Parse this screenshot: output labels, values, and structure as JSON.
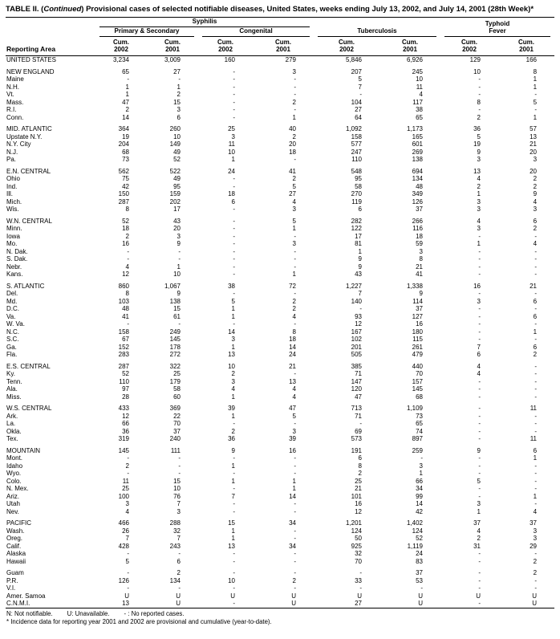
{
  "title": {
    "prefix": "TABLE II. (",
    "continued": "Continued",
    "suffix": ") Provisional cases of selected notifiable diseases, United States, weeks ending July 13, 2002, and July 14, 2001 (28th Week)*"
  },
  "table": {
    "reporting_area_label": "Reporting Area",
    "groups": {
      "syphilis": "Syphilis",
      "primary_secondary": "Primary & Secondary",
      "congenital": "Congenital",
      "tuberculosis": "Tuberculosis",
      "typhoid_line1": "Typhoid",
      "typhoid_line2": "Fever"
    },
    "columns": [
      {
        "cum": "Cum.",
        "year": "2002"
      },
      {
        "cum": "Cum.",
        "year": "2001"
      },
      {
        "cum": "Cum.",
        "year": "2002"
      },
      {
        "cum": "Cum.",
        "year": "2001"
      },
      {
        "cum": "Cum.",
        "year": "2002"
      },
      {
        "cum": "Cum.",
        "year": "2001"
      },
      {
        "cum": "Cum.",
        "year": "2002"
      },
      {
        "cum": "Cum.",
        "year": "2001"
      }
    ],
    "sections": [
      [
        {
          "a": "UNITED STATES",
          "v": [
            "3,234",
            "3,009",
            "160",
            "279",
            "5,846",
            "6,926",
            "129",
            "166"
          ]
        }
      ],
      [
        {
          "a": "NEW ENGLAND",
          "v": [
            "65",
            "27",
            "-",
            "3",
            "207",
            "245",
            "10",
            "8"
          ]
        },
        {
          "a": "Maine",
          "v": [
            "-",
            "-",
            "-",
            "-",
            "5",
            "10",
            "-",
            "1"
          ]
        },
        {
          "a": "N.H.",
          "v": [
            "1",
            "1",
            "-",
            "-",
            "7",
            "11",
            "-",
            "1"
          ]
        },
        {
          "a": "Vt.",
          "v": [
            "1",
            "2",
            "-",
            "-",
            "-",
            "4",
            "-",
            "-"
          ]
        },
        {
          "a": "Mass.",
          "v": [
            "47",
            "15",
            "-",
            "2",
            "104",
            "117",
            "8",
            "5"
          ]
        },
        {
          "a": "R.I.",
          "v": [
            "2",
            "3",
            "-",
            "-",
            "27",
            "38",
            "-",
            "-"
          ]
        },
        {
          "a": "Conn.",
          "v": [
            "14",
            "6",
            "-",
            "1",
            "64",
            "65",
            "2",
            "1"
          ]
        }
      ],
      [
        {
          "a": "MID. ATLANTIC",
          "v": [
            "364",
            "260",
            "25",
            "40",
            "1,092",
            "1,173",
            "36",
            "57"
          ]
        },
        {
          "a": "Upstate N.Y.",
          "v": [
            "19",
            "10",
            "3",
            "2",
            "158",
            "165",
            "5",
            "13"
          ]
        },
        {
          "a": "N.Y. City",
          "v": [
            "204",
            "149",
            "11",
            "20",
            "577",
            "601",
            "19",
            "21"
          ]
        },
        {
          "a": "N.J.",
          "v": [
            "68",
            "49",
            "10",
            "18",
            "247",
            "269",
            "9",
            "20"
          ]
        },
        {
          "a": "Pa.",
          "v": [
            "73",
            "52",
            "1",
            "-",
            "110",
            "138",
            "3",
            "3"
          ]
        }
      ],
      [
        {
          "a": "E.N. CENTRAL",
          "v": [
            "562",
            "522",
            "24",
            "41",
            "548",
            "694",
            "13",
            "20"
          ]
        },
        {
          "a": "Ohio",
          "v": [
            "75",
            "49",
            "-",
            "2",
            "95",
            "134",
            "4",
            "2"
          ]
        },
        {
          "a": "Ind.",
          "v": [
            "42",
            "95",
            "-",
            "5",
            "58",
            "48",
            "2",
            "2"
          ]
        },
        {
          "a": "Ill.",
          "v": [
            "150",
            "159",
            "18",
            "27",
            "270",
            "349",
            "1",
            "9"
          ]
        },
        {
          "a": "Mich.",
          "v": [
            "287",
            "202",
            "6",
            "4",
            "119",
            "126",
            "3",
            "4"
          ]
        },
        {
          "a": "Wis.",
          "v": [
            "8",
            "17",
            "-",
            "3",
            "6",
            "37",
            "3",
            "3"
          ]
        }
      ],
      [
        {
          "a": "W.N. CENTRAL",
          "v": [
            "52",
            "43",
            "-",
            "5",
            "282",
            "266",
            "4",
            "6"
          ]
        },
        {
          "a": "Minn.",
          "v": [
            "18",
            "20",
            "-",
            "1",
            "122",
            "116",
            "3",
            "2"
          ]
        },
        {
          "a": "Iowa",
          "v": [
            "2",
            "3",
            "-",
            "-",
            "17",
            "18",
            "-",
            "-"
          ]
        },
        {
          "a": "Mo.",
          "v": [
            "16",
            "9",
            "-",
            "3",
            "81",
            "59",
            "1",
            "4"
          ]
        },
        {
          "a": "N. Dak.",
          "v": [
            "-",
            "-",
            "-",
            "-",
            "1",
            "3",
            "-",
            "-"
          ]
        },
        {
          "a": "S. Dak.",
          "v": [
            "-",
            "-",
            "-",
            "-",
            "9",
            "8",
            "-",
            "-"
          ]
        },
        {
          "a": "Nebr.",
          "v": [
            "4",
            "1",
            "-",
            "-",
            "9",
            "21",
            "-",
            "-"
          ]
        },
        {
          "a": "Kans.",
          "v": [
            "12",
            "10",
            "-",
            "1",
            "43",
            "41",
            "-",
            "-"
          ]
        }
      ],
      [
        {
          "a": "S. ATLANTIC",
          "v": [
            "860",
            "1,067",
            "38",
            "72",
            "1,227",
            "1,338",
            "16",
            "21"
          ]
        },
        {
          "a": "Del.",
          "v": [
            "8",
            "9",
            "-",
            "-",
            "7",
            "9",
            "-",
            "-"
          ]
        },
        {
          "a": "Md.",
          "v": [
            "103",
            "138",
            "5",
            "2",
            "140",
            "114",
            "3",
            "6"
          ]
        },
        {
          "a": "D.C.",
          "v": [
            "48",
            "15",
            "1",
            "2",
            "-",
            "37",
            "-",
            "-"
          ]
        },
        {
          "a": "Va.",
          "v": [
            "41",
            "61",
            "1",
            "4",
            "93",
            "127",
            "-",
            "6"
          ]
        },
        {
          "a": "W. Va.",
          "v": [
            "-",
            "-",
            "-",
            "-",
            "12",
            "16",
            "-",
            "-"
          ]
        },
        {
          "a": "N.C.",
          "v": [
            "158",
            "249",
            "14",
            "8",
            "167",
            "180",
            "-",
            "1"
          ]
        },
        {
          "a": "S.C.",
          "v": [
            "67",
            "145",
            "3",
            "18",
            "102",
            "115",
            "-",
            "-"
          ]
        },
        {
          "a": "Ga.",
          "v": [
            "152",
            "178",
            "1",
            "14",
            "201",
            "261",
            "7",
            "6"
          ]
        },
        {
          "a": "Fla.",
          "v": [
            "283",
            "272",
            "13",
            "24",
            "505",
            "479",
            "6",
            "2"
          ]
        }
      ],
      [
        {
          "a": "E.S. CENTRAL",
          "v": [
            "287",
            "322",
            "10",
            "21",
            "385",
            "440",
            "4",
            "-"
          ]
        },
        {
          "a": "Ky.",
          "v": [
            "52",
            "25",
            "2",
            "-",
            "71",
            "70",
            "4",
            "-"
          ]
        },
        {
          "a": "Tenn.",
          "v": [
            "110",
            "179",
            "3",
            "13",
            "147",
            "157",
            "-",
            "-"
          ]
        },
        {
          "a": "Ala.",
          "v": [
            "97",
            "58",
            "4",
            "4",
            "120",
            "145",
            "-",
            "-"
          ]
        },
        {
          "a": "Miss.",
          "v": [
            "28",
            "60",
            "1",
            "4",
            "47",
            "68",
            "-",
            "-"
          ]
        }
      ],
      [
        {
          "a": "W.S. CENTRAL",
          "v": [
            "433",
            "369",
            "39",
            "47",
            "713",
            "1,109",
            "-",
            "11"
          ]
        },
        {
          "a": "Ark.",
          "v": [
            "12",
            "22",
            "1",
            "5",
            "71",
            "73",
            "-",
            "-"
          ]
        },
        {
          "a": "La.",
          "v": [
            "66",
            "70",
            "-",
            "-",
            "-",
            "65",
            "-",
            "-"
          ]
        },
        {
          "a": "Okla.",
          "v": [
            "36",
            "37",
            "2",
            "3",
            "69",
            "74",
            "-",
            "-"
          ]
        },
        {
          "a": "Tex.",
          "v": [
            "319",
            "240",
            "36",
            "39",
            "573",
            "897",
            "-",
            "11"
          ]
        }
      ],
      [
        {
          "a": "MOUNTAIN",
          "v": [
            "145",
            "111",
            "9",
            "16",
            "191",
            "259",
            "9",
            "6"
          ]
        },
        {
          "a": "Mont.",
          "v": [
            "-",
            "-",
            "-",
            "-",
            "6",
            "-",
            "-",
            "1"
          ]
        },
        {
          "a": "Idaho",
          "v": [
            "2",
            "-",
            "1",
            "-",
            "8",
            "3",
            "-",
            "-"
          ]
        },
        {
          "a": "Wyo.",
          "v": [
            "-",
            "-",
            "-",
            "-",
            "2",
            "1",
            "-",
            "-"
          ]
        },
        {
          "a": "Colo.",
          "v": [
            "11",
            "15",
            "1",
            "1",
            "25",
            "66",
            "5",
            "-"
          ]
        },
        {
          "a": "N. Mex.",
          "v": [
            "25",
            "10",
            "-",
            "1",
            "21",
            "34",
            "-",
            "-"
          ]
        },
        {
          "a": "Ariz.",
          "v": [
            "100",
            "76",
            "7",
            "14",
            "101",
            "99",
            "-",
            "1"
          ]
        },
        {
          "a": "Utah",
          "v": [
            "3",
            "7",
            "-",
            "-",
            "16",
            "14",
            "3",
            "-"
          ]
        },
        {
          "a": "Nev.",
          "v": [
            "4",
            "3",
            "-",
            "-",
            "12",
            "42",
            "1",
            "4"
          ]
        }
      ],
      [
        {
          "a": "PACIFIC",
          "v": [
            "466",
            "288",
            "15",
            "34",
            "1,201",
            "1,402",
            "37",
            "37"
          ]
        },
        {
          "a": "Wash.",
          "v": [
            "26",
            "32",
            "1",
            "-",
            "124",
            "124",
            "4",
            "3"
          ]
        },
        {
          "a": "Oreg.",
          "v": [
            "7",
            "7",
            "1",
            "-",
            "50",
            "52",
            "2",
            "3"
          ]
        },
        {
          "a": "Calif.",
          "v": [
            "428",
            "243",
            "13",
            "34",
            "925",
            "1,119",
            "31",
            "29"
          ]
        },
        {
          "a": "Alaska",
          "v": [
            "-",
            "-",
            "-",
            "-",
            "32",
            "24",
            "-",
            "-"
          ]
        },
        {
          "a": "Hawaii",
          "v": [
            "5",
            "6",
            "-",
            "-",
            "70",
            "83",
            "-",
            "2"
          ]
        }
      ],
      [
        {
          "a": "Guam",
          "v": [
            "-",
            "2",
            "-",
            "-",
            "-",
            "37",
            "-",
            "2"
          ]
        },
        {
          "a": "P.R.",
          "v": [
            "126",
            "134",
            "10",
            "2",
            "33",
            "53",
            "-",
            "-"
          ]
        },
        {
          "a": "V.I.",
          "v": [
            "-",
            "-",
            "-",
            "-",
            "-",
            "-",
            "-",
            "-"
          ]
        },
        {
          "a": "Amer. Samoa",
          "v": [
            "U",
            "U",
            "U",
            "U",
            "U",
            "U",
            "U",
            "U"
          ]
        },
        {
          "a": "C.N.M.I.",
          "v": [
            "13",
            "U",
            "-",
            "U",
            "27",
            "U",
            "-",
            "U"
          ]
        }
      ]
    ]
  },
  "footnotes": {
    "line1": [
      "N: Not notifiable.",
      "U: Unavailable.",
      "- : No reported cases."
    ],
    "line2": "* Incidence data for reporting year 2001 and 2002 are provisional and cumulative (year-to-date)."
  }
}
